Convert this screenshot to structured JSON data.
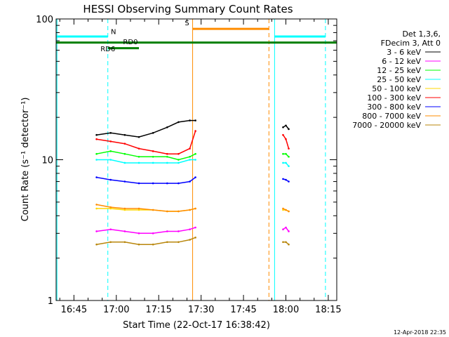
{
  "chart_data": {
    "type": "line",
    "title": "HESSI Observing Summary Count Rates",
    "xlabel": "Start Time (22-Oct-17 16:38:42)",
    "ylabel": "Count Rate (s⁻¹ detector⁻¹)",
    "y_scale": "log",
    "ylim": [
      1,
      100
    ],
    "xlim": [
      "16:38:42",
      "18:18:00"
    ],
    "x_ticks": [
      "16:45",
      "17:00",
      "17:15",
      "17:30",
      "17:45",
      "18:00",
      "18:15"
    ],
    "y_ticks": [
      "1",
      "10",
      "100"
    ],
    "grid": false,
    "legend_position": "top-right",
    "legend_header": [
      "Det 1,3,6,",
      "FDecim 3, Att 0"
    ],
    "series": [
      {
        "name": "3 - 6 keV",
        "color": "#000000",
        "segments": [
          {
            "x": [
              "16:53",
              "16:58",
              "17:03",
              "17:08",
              "17:13",
              "17:18",
              "17:22",
              "17:26",
              "17:28"
            ],
            "y": [
              15,
              15.5,
              15,
              14.5,
              15.5,
              17,
              18.5,
              19,
              19
            ]
          },
          {
            "x": [
              "17:59",
              "18:00",
              "18:01"
            ],
            "y": [
              17,
              17.5,
              16.5
            ]
          }
        ]
      },
      {
        "name": "6 - 12 keV",
        "color": "#ff00ff",
        "segments": [
          {
            "x": [
              "16:53",
              "16:58",
              "17:03",
              "17:08",
              "17:13",
              "17:18",
              "17:22",
              "17:26",
              "17:28"
            ],
            "y": [
              3.1,
              3.2,
              3.1,
              3.0,
              3.0,
              3.1,
              3.1,
              3.2,
              3.3
            ]
          },
          {
            "x": [
              "17:59",
              "18:00",
              "18:01"
            ],
            "y": [
              3.2,
              3.3,
              3.1
            ]
          }
        ]
      },
      {
        "name": "12 - 25 keV",
        "color": "#00ff00",
        "segments": [
          {
            "x": [
              "16:53",
              "16:58",
              "17:03",
              "17:08",
              "17:13",
              "17:18",
              "17:22",
              "17:26",
              "17:28"
            ],
            "y": [
              11,
              11.5,
              11,
              10.5,
              10.5,
              10.5,
              10,
              10.5,
              11
            ]
          },
          {
            "x": [
              "17:59",
              "18:00",
              "18:01"
            ],
            "y": [
              11,
              11,
              10.5
            ]
          }
        ]
      },
      {
        "name": "25 - 50 keV",
        "color": "#00ffff",
        "segments": [
          {
            "x": [
              "16:53",
              "16:58",
              "17:03",
              "17:08",
              "17:13",
              "17:18",
              "17:22",
              "17:26",
              "17:28"
            ],
            "y": [
              10,
              10,
              9.5,
              9.5,
              9.5,
              9.5,
              9.5,
              10,
              10
            ]
          },
          {
            "x": [
              "17:59",
              "18:00",
              "18:01"
            ],
            "y": [
              9.5,
              9.5,
              9
            ]
          }
        ]
      },
      {
        "name": "50 - 100 keV",
        "color": "#ffd700",
        "segments": [
          {
            "x": [
              "16:53",
              "16:58",
              "17:03",
              "17:08",
              "17:13",
              "17:18",
              "17:22",
              "17:26",
              "17:28"
            ],
            "y": [
              4.5,
              4.5,
              4.4,
              4.4,
              4.4,
              4.3,
              4.3,
              4.4,
              4.5
            ]
          },
          {
            "x": [
              "17:59",
              "18:00",
              "18:01"
            ],
            "y": [
              4.4,
              4.4,
              4.3
            ]
          }
        ]
      },
      {
        "name": "100 - 300 keV",
        "color": "#ff0000",
        "segments": [
          {
            "x": [
              "16:53",
              "16:58",
              "17:03",
              "17:08",
              "17:13",
              "17:18",
              "17:22",
              "17:26",
              "17:28"
            ],
            "y": [
              14,
              13.5,
              13,
              12,
              11.5,
              11,
              11,
              12,
              16
            ]
          },
          {
            "x": [
              "17:59",
              "18:00",
              "18:01"
            ],
            "y": [
              15,
              14,
              12
            ]
          }
        ]
      },
      {
        "name": "300 - 800 keV",
        "color": "#0000ff",
        "segments": [
          {
            "x": [
              "16:53",
              "16:58",
              "17:03",
              "17:08",
              "17:13",
              "17:18",
              "17:22",
              "17:26",
              "17:28"
            ],
            "y": [
              7.5,
              7.2,
              7.0,
              6.8,
              6.8,
              6.8,
              6.8,
              7.0,
              7.5
            ]
          },
          {
            "x": [
              "17:59",
              "18:00",
              "18:01"
            ],
            "y": [
              7.3,
              7.2,
              7.0
            ]
          }
        ]
      },
      {
        "name": "800 - 7000 keV",
        "color": "#ff8c00",
        "segments": [
          {
            "x": [
              "16:53",
              "16:58",
              "17:03",
              "17:08",
              "17:13",
              "17:18",
              "17:22",
              "17:26",
              "17:28"
            ],
            "y": [
              4.8,
              4.6,
              4.5,
              4.5,
              4.4,
              4.3,
              4.3,
              4.4,
              4.5
            ]
          },
          {
            "x": [
              "17:59",
              "18:00",
              "18:01"
            ],
            "y": [
              4.5,
              4.4,
              4.3
            ]
          }
        ]
      },
      {
        "name": "7000 - 20000 keV",
        "color": "#b8860b",
        "segments": [
          {
            "x": [
              "16:53",
              "16:58",
              "17:03",
              "17:08",
              "17:13",
              "17:18",
              "17:22",
              "17:26",
              "17:28"
            ],
            "y": [
              2.5,
              2.6,
              2.6,
              2.5,
              2.5,
              2.6,
              2.6,
              2.7,
              2.8
            ]
          },
          {
            "x": [
              "17:59",
              "18:00",
              "18:01"
            ],
            "y": [
              2.6,
              2.6,
              2.5
            ]
          }
        ]
      }
    ],
    "vertical_markers": [
      {
        "x": "16:39",
        "color": "#00ffff",
        "style": "solid"
      },
      {
        "x": "16:57",
        "color": "#00ffff",
        "style": "dashed"
      },
      {
        "x": "17:27",
        "color": "#ff8c00",
        "style": "solid"
      },
      {
        "x": "17:54",
        "color": "#ff8c00",
        "style": "dashed"
      },
      {
        "x": "17:56",
        "color": "#00ffff",
        "style": "solid"
      },
      {
        "x": "18:14",
        "color": "#00ffff",
        "style": "dashed"
      }
    ],
    "flag_bars": [
      {
        "x": [
          "16:38:42",
          "16:57"
        ],
        "y": 75,
        "color": "#00ffff"
      },
      {
        "x": [
          "17:56",
          "18:14"
        ],
        "y": 75,
        "color": "#00ffff"
      },
      {
        "x": [
          "17:27",
          "17:54"
        ],
        "y": 85,
        "color": "#ff8c00"
      },
      {
        "x": [
          "16:38:42",
          "18:18"
        ],
        "y": 68,
        "color": "#008000"
      },
      {
        "x": [
          "16:57",
          "17:08"
        ],
        "y": 62,
        "color": "#008000"
      }
    ],
    "annotations": [
      {
        "text": "N",
        "x": "16:59",
        "y": 78,
        "color": "#00ffff"
      },
      {
        "text": "S",
        "x": "17:25",
        "y": 90,
        "color": "#ff8c00"
      },
      {
        "text": "RD0",
        "x": "17:05",
        "y": 66,
        "color": "#008000"
      },
      {
        "text": "RD6",
        "x": "16:57",
        "y": 59,
        "color": "#008000"
      }
    ]
  },
  "timestamp": "12-Apr-2018 22:35"
}
